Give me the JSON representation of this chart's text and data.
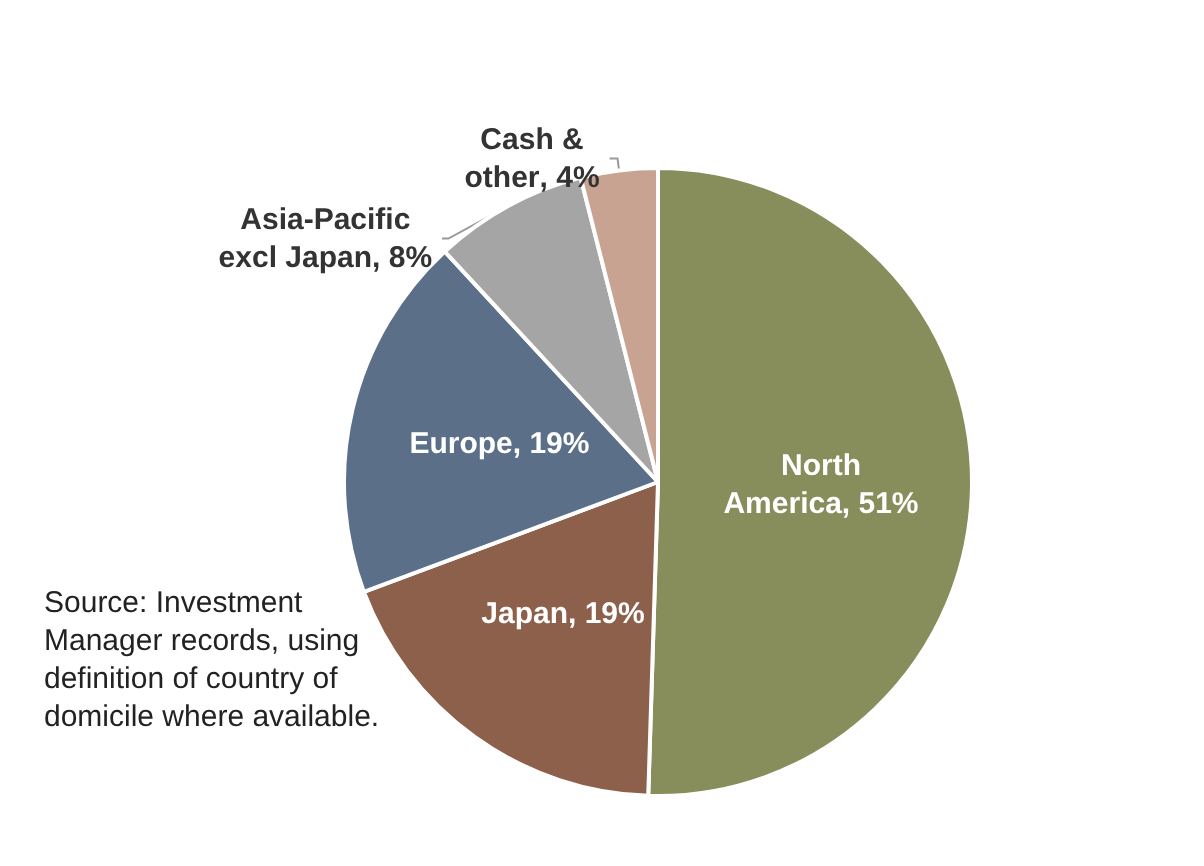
{
  "chart_data": {
    "type": "pie",
    "categories": [
      "North America",
      "Japan",
      "Europe",
      "Asia-Pacific excl Japan",
      "Cash & other"
    ],
    "values": [
      51,
      19,
      19,
      8,
      4
    ],
    "colors": [
      "#878d5b",
      "#8d604b",
      "#5b6f88",
      "#a5a5a5",
      "#c9a392"
    ],
    "value_labels": [
      ", 51%",
      ", 19%",
      ", 19%",
      ", 8%",
      ", 4%"
    ],
    "annotations": [
      "Source: Investment Manager records, using definition of country of domicile where available."
    ],
    "legend": false
  }
}
